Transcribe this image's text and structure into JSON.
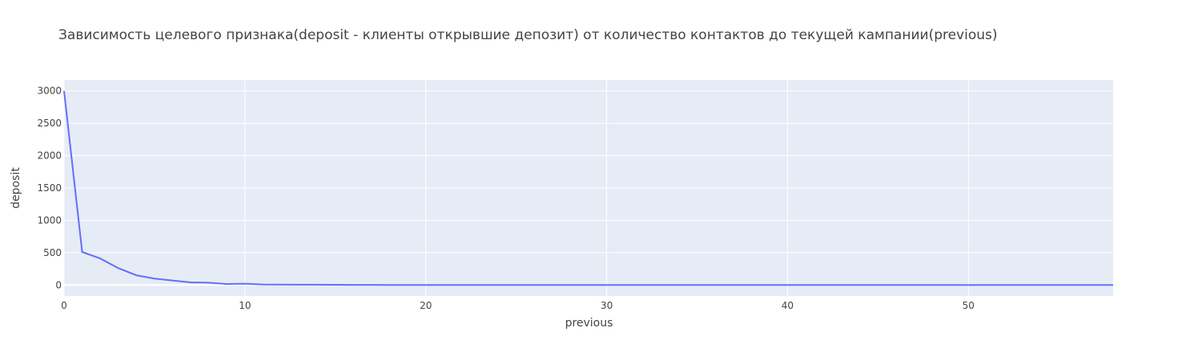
{
  "chart_data": {
    "type": "line",
    "title": "Зависимость целевого признака(deposit - клиенты открывшие депозит) от количество контактов до текущей кампании(previous)",
    "xlabel": "previous",
    "ylabel": "deposit",
    "xlim": [
      0,
      58
    ],
    "ylim": [
      -170,
      3170
    ],
    "x_ticks": [
      0,
      10,
      20,
      30,
      40,
      50
    ],
    "y_ticks": [
      0,
      500,
      1000,
      1500,
      2000,
      2500,
      3000
    ],
    "grid": true,
    "colors": {
      "line": "#636efa",
      "plot_bg": "#e5ecf6",
      "grid": "#ffffff"
    },
    "series": [
      {
        "x": [
          0,
          1,
          2,
          3,
          4,
          5,
          6,
          7,
          8,
          9,
          10,
          11,
          12,
          13,
          14,
          15,
          16,
          17,
          18,
          19,
          20,
          58
        ],
        "y": [
          3000,
          510,
          410,
          260,
          150,
          100,
          70,
          40,
          35,
          15,
          20,
          8,
          6,
          5,
          4,
          3,
          2,
          2,
          1,
          1,
          0,
          0
        ]
      }
    ]
  }
}
